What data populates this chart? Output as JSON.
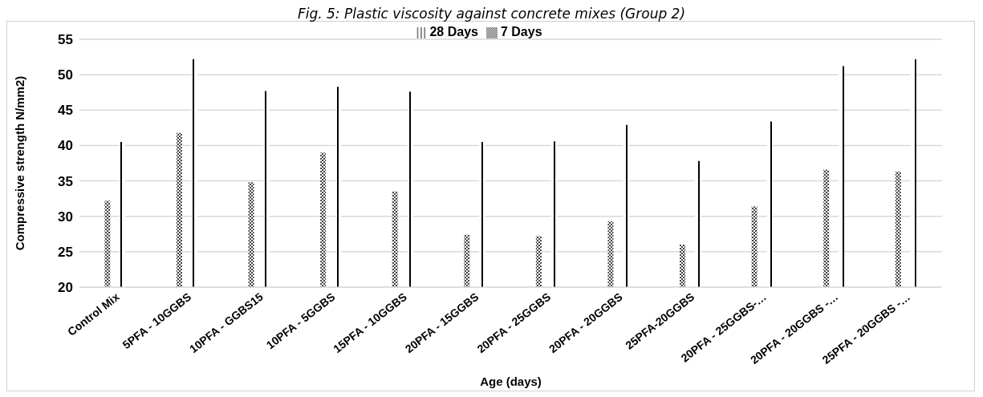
{
  "chart_data": {
    "type": "bar",
    "title": "Fig. 5: Plastic viscosity against concrete mixes (Group 2)",
    "xlabel": "Age (days)",
    "ylabel": "Compressive strength N/mm2)",
    "categories": [
      "Control Mix",
      "5PFA - 10GGBS",
      "10PFA - GGBS15",
      "10PFA - 5GGBS",
      "15PFA - 10GGBS",
      "20PFA - 15GGBS",
      "20PFA - 25GGBS",
      "20PFA - 20GGBS",
      "25PFA-20GGBS",
      "20PFA - 25GGBS-…",
      "20PFA - 20GGBS -…",
      "25PFA - 20GGBS -…"
    ],
    "series": [
      {
        "name": "7 Days",
        "color": "#444444",
        "values": [
          32.2,
          41.8,
          34.8,
          39.0,
          33.5,
          27.4,
          27.2,
          29.3,
          26.0,
          31.4,
          36.6,
          36.3
        ]
      },
      {
        "name": "28 Days",
        "color": "#000000",
        "values": [
          40.5,
          52.2,
          47.7,
          48.3,
          47.6,
          40.5,
          40.6,
          42.9,
          37.8,
          43.4,
          51.2,
          52.2
        ]
      }
    ],
    "ylim": [
      20,
      55
    ],
    "yticks": [
      20,
      25,
      30,
      35,
      40,
      45,
      50,
      55
    ],
    "grid": "y",
    "legend": "top"
  }
}
